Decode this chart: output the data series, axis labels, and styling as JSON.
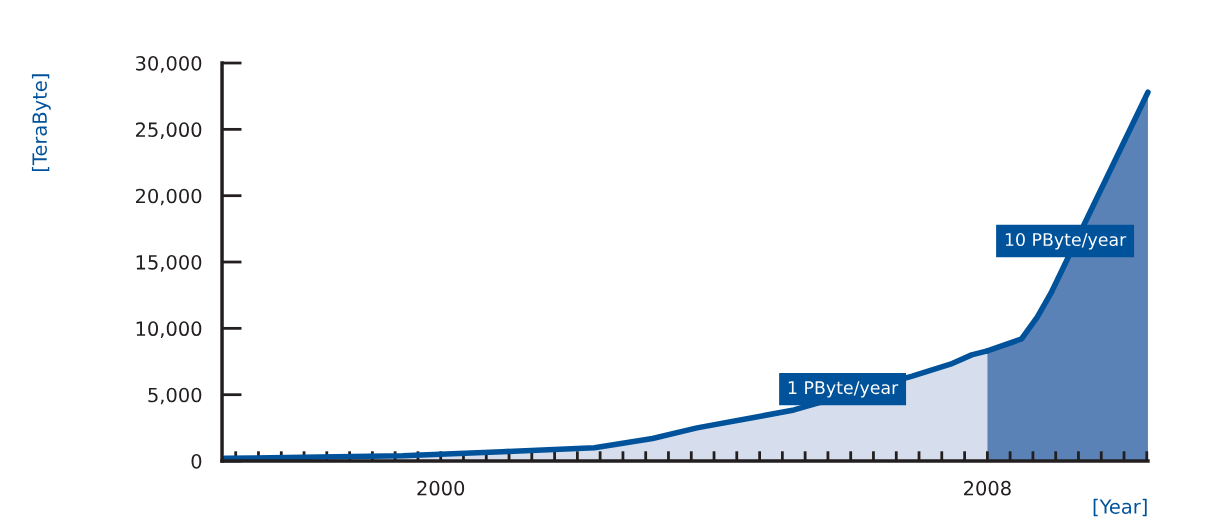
{
  "chart_data": {
    "type": "area",
    "xlabel": "[Year]",
    "ylabel": "[TeraByte]",
    "xlim": [
      1996.8,
      2010.35
    ],
    "ylim": [
      0,
      30000
    ],
    "xticks": [
      {
        "value": 1997.0,
        "label": null
      },
      {
        "value": 1997.333,
        "label": null
      },
      {
        "value": 1997.667,
        "label": null
      },
      {
        "value": 1998.0,
        "label": null
      },
      {
        "value": 1998.333,
        "label": null
      },
      {
        "value": 1998.667,
        "label": null
      },
      {
        "value": 1999.0,
        "label": null
      },
      {
        "value": 1999.333,
        "label": null
      },
      {
        "value": 1999.667,
        "label": null
      },
      {
        "value": 2000,
        "label": "2000"
      },
      {
        "value": 2000.333,
        "label": null
      },
      {
        "value": 2000.667,
        "label": null
      },
      {
        "value": 2001.0,
        "label": null
      },
      {
        "value": 2001.333,
        "label": null
      },
      {
        "value": 2001.667,
        "label": null
      },
      {
        "value": 2002.0,
        "label": null
      },
      {
        "value": 2002.333,
        "label": null
      },
      {
        "value": 2002.667,
        "label": null
      },
      {
        "value": 2003.0,
        "label": null
      },
      {
        "value": 2003.333,
        "label": null
      },
      {
        "value": 2003.667,
        "label": null
      },
      {
        "value": 2004.0,
        "label": null
      },
      {
        "value": 2004.333,
        "label": null
      },
      {
        "value": 2004.667,
        "label": null
      },
      {
        "value": 2005.0,
        "label": null
      },
      {
        "value": 2005.333,
        "label": null
      },
      {
        "value": 2005.667,
        "label": null
      },
      {
        "value": 2006.0,
        "label": null
      },
      {
        "value": 2006.333,
        "label": null
      },
      {
        "value": 2006.667,
        "label": null
      },
      {
        "value": 2007.0,
        "label": null
      },
      {
        "value": 2007.333,
        "label": null
      },
      {
        "value": 2007.667,
        "label": null
      },
      {
        "value": 2008,
        "label": "2008"
      },
      {
        "value": 2008.333,
        "label": null
      },
      {
        "value": 2008.667,
        "label": null
      },
      {
        "value": 2009.0,
        "label": null
      },
      {
        "value": 2009.333,
        "label": null
      },
      {
        "value": 2009.667,
        "label": null
      },
      {
        "value": 2010.0,
        "label": null
      },
      {
        "value": 2010.333,
        "label": null
      }
    ],
    "yticks": [
      {
        "value": 0,
        "label": "0"
      },
      {
        "value": 5000,
        "label": "5,000"
      },
      {
        "value": 10000,
        "label": "10,000"
      },
      {
        "value": 15000,
        "label": "15,000"
      },
      {
        "value": 20000,
        "label": "20,000"
      },
      {
        "value": 25000,
        "label": "25,000"
      },
      {
        "value": 30000,
        "label": "30,000"
      }
    ],
    "series": [
      {
        "color": "#d6ddec",
        "x": [
          1996.84,
          1999.44,
          2000.9,
          2002.25,
          2003.1,
          2003.75,
          2004.7,
          2005.17,
          2006.9,
          2007.46,
          2007.77,
          2008.0
        ],
        "values": [
          200,
          400,
          700,
          1000,
          1700,
          2500,
          3400,
          3850,
          6400,
          7300,
          8000,
          8300
        ]
      },
      {
        "color": "#5b82b6",
        "x": [
          2008.0,
          2008.5,
          2008.73,
          2008.93,
          2010.35
        ],
        "values": [
          8300,
          9200,
          10850,
          12650,
          27800
        ]
      }
    ],
    "annotations": [
      {
        "text": "1 PByte/year",
        "x": 2005.17,
        "y": 3850
      },
      {
        "text": "10 PByte/year",
        "x": 2009.3,
        "y": 16580
      }
    ],
    "grid": false,
    "legend": false
  }
}
